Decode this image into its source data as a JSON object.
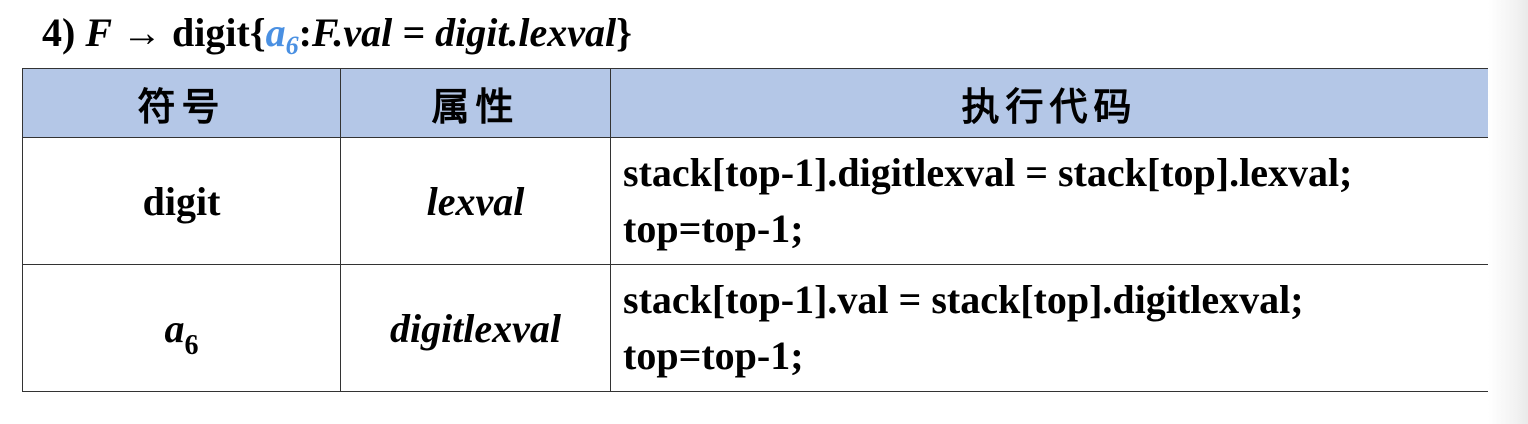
{
  "heading": {
    "number": "4)",
    "lhs": "F",
    "arrow": "→",
    "rhs": "digit",
    "brace_open": "{",
    "action_symbol": "a",
    "action_symbol_sub": "6",
    "colon": ":",
    "action_code": "F.val = digit.lexval",
    "brace_close": "}"
  },
  "table": {
    "columns": [
      "符号",
      "属性",
      "执行代码"
    ],
    "rows": [
      {
        "symbol": "digit",
        "symbol_sub": "",
        "attribute": "lexval",
        "code_lines": [
          "stack[top-1].digitlexval = stack[top].lexval;",
          "top=top-1;"
        ]
      },
      {
        "symbol": "a",
        "symbol_sub": "6",
        "attribute": "digitlexval",
        "code_lines": [
          "stack[top-1].val = stack[top].digitlexval;",
          "top=top-1;"
        ]
      }
    ]
  },
  "colors": {
    "header_background": "#b4c7e7",
    "action_symbol": "#4a90e2"
  }
}
